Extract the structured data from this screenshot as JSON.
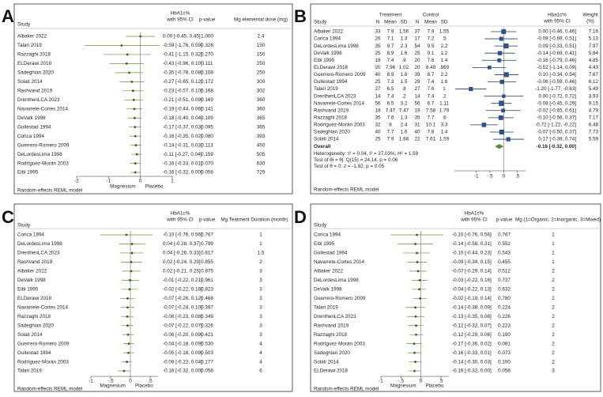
{
  "chart_data": [
    {
      "type": "forest",
      "panel": "A",
      "header": [
        "Study",
        "HbA1c%",
        "with 95% CI",
        "p-value",
        "Mg elemental dose (mg)"
      ],
      "categories": [
        "Albaker 2022",
        "Talari 2019",
        "Razzaghi 2018",
        "ELDerawi 2018",
        "Sadeghian 2020",
        "Solati 2014",
        "Rashvand 2019",
        "DrenthenLCA 2023",
        "Navarrete-Cortes 2014",
        "DeValk 1998",
        "Gullestad 1994",
        "Corica 1994",
        "Guerrero-Romero 2009",
        "DeLordesLima 1998",
        "Rodríguez-Morán 2003",
        "Eibl 1995"
      ],
      "values": [
        0.0,
        -0.59,
        -0.41,
        -0.43,
        -0.35,
        -0.27,
        -0.23,
        -0.21,
        -0.19,
        -0.18,
        -0.17,
        -0.16,
        -0.14,
        -0.11,
        -0.16,
        -0.16
      ],
      "lower": [
        -0.45,
        -1.76,
        -1.15,
        -0.96,
        -0.78,
        -0.65,
        -0.57,
        -0.51,
        -0.44,
        -0.4,
        -0.37,
        -0.35,
        -0.31,
        -0.27,
        -0.33,
        -0.32
      ],
      "upper": [
        0.45,
        0.59,
        0.32,
        0.1,
        0.08,
        0.12,
        0.1,
        0.09,
        0.06,
        0.04,
        0.03,
        0.02,
        0.03,
        0.04,
        0.01,
        0.0
      ],
      "value_labels": [
        "0.00 [-0.45, 0.45]",
        "-0.59 [-1.76, 0.59]",
        "-0.41 [-1.15, 0.32]",
        "-0.43 [-0.96, 0.10]",
        "-0.35 [-0.78, 0.08]",
        "-0.27 [-0.65, 0.12]",
        "-0.23 [-0.57, 0.10]",
        "-0.21 [-0.51, 0.09]",
        "-0.19 [-0.44, 0.06]",
        "-0.18 [-0.40, 0.04]",
        "-0.17 [-0.37, 0.03]",
        "-0.16 [-0.35, 0.02]",
        "-0.14 [-0.31, 0.03]",
        "-0.11 [-0.27, 0.04]",
        "-0.16 [-0.33, 0.01]",
        "-0.16 [-0.32, 0.00]"
      ],
      "p_values": [
        "1.000",
        "0.328",
        "0.270",
        "0.111",
        "0.108",
        "0.172",
        "0.168",
        "0.169",
        "0.141",
        "0.109",
        "0.095",
        "0.080",
        "0.113",
        "0.159",
        "0.070",
        "0.056"
      ],
      "moderator": [
        2.4,
        150,
        150,
        250,
        250,
        300,
        302,
        360,
        360,
        365,
        365,
        393,
        450,
        505,
        630,
        729
      ],
      "xlim": [
        -2,
        1
      ],
      "xticks": [
        -2,
        -1,
        0,
        1
      ],
      "left_label": "Magnesium",
      "right_label": "Placebo",
      "footer": "Random-effects REML model"
    },
    {
      "type": "forest",
      "panel": "B",
      "header": [
        "Study",
        "Treatment",
        "Control",
        "N",
        "Mean",
        "SD",
        "N",
        "Mean",
        "SD",
        "Hba1c%",
        "with 95% CI",
        "Weight",
        "(%)"
      ],
      "categories": [
        "Albaker 2022",
        "Corica 1994",
        "DeLordesLima 1998",
        "DeValk 1998",
        "Eibl 1995",
        "ELDerawi 2018",
        "Guerrero-Romero 2009",
        "Gullestad 1994",
        "Talari 2019",
        "DrenthenLCA 2023",
        "Navarrete-Cortes 2014",
        "Rashvand 2019",
        "Razzaghi 2018",
        "Rodríguez-Morán 2003",
        "Sadeghian 2020",
        "Solati 2014"
      ],
      "treatment": [
        [
          "33",
          "7.9",
          "1.56"
        ],
        [
          "26",
          "7.1",
          "1.3"
        ],
        [
          "35",
          "9.7",
          "2.3"
        ],
        [
          "25",
          "8.9",
          "1.6"
        ],
        [
          "18",
          "7.4",
          ".9"
        ],
        [
          "20",
          "7.96",
          "1.02"
        ],
        [
          "40",
          "8.9",
          "1.8"
        ],
        [
          "25",
          "7.3",
          "1.5"
        ],
        [
          "27",
          "6.5",
          ".8"
        ],
        [
          "14",
          "7.4",
          ".2"
        ],
        [
          "56",
          "6.5",
          "3.2"
        ],
        [
          "18",
          "7.47",
          "7.47"
        ],
        [
          "35",
          "7.6",
          "1.3"
        ],
        [
          "32",
          "8",
          "2.4"
        ],
        [
          "40",
          "7.7",
          "1.6"
        ],
        [
          "25",
          "7.9",
          "1.68"
        ]
      ],
      "control": [
        [
          "37",
          "7.9",
          "1.55"
        ],
        [
          "17",
          "7.2",
          ".5"
        ],
        [
          "54",
          "9.5",
          "2.2"
        ],
        [
          "25",
          "9.1",
          "1.2"
        ],
        [
          "20",
          "7.6",
          "1.4"
        ],
        [
          "20",
          "8.49",
          ".869"
        ],
        [
          "39",
          "8.7",
          "2.2"
        ],
        [
          "29",
          "7.4",
          "1.6"
        ],
        [
          "27",
          "7.6",
          "1"
        ],
        [
          "14",
          "7.4",
          ".2"
        ],
        [
          "56",
          "6.7",
          "1.11"
        ],
        [
          "19",
          "7.58",
          "1.79"
        ],
        [
          "35",
          "7.7",
          ".6"
        ],
        [
          "31",
          "10.1",
          "3.3"
        ],
        [
          "40",
          "7.8",
          "1.4"
        ],
        [
          "22",
          "7.61",
          "1.59"
        ]
      ],
      "values": [
        0.0,
        -0.09,
        0.09,
        -0.14,
        -0.16,
        -0.52,
        0.1,
        -0.06,
        -1.2,
        0.0,
        -0.08,
        -0.02,
        -0.1,
        -0.72,
        -0.07,
        0.17
      ],
      "lower": [
        -0.46,
        -0.69,
        -0.33,
        -0.69,
        -0.79,
        -1.14,
        -0.34,
        -0.59,
        -1.77,
        -0.72,
        -0.45,
        -0.65,
        -0.56,
        -1.22,
        -0.5,
        -0.39
      ],
      "upper": [
        0.46,
        0.51,
        0.51,
        0.41,
        0.46,
        0.09,
        0.54,
        0.46,
        -0.63,
        0.72,
        0.29,
        0.61,
        0.37,
        -0.22,
        0.37,
        0.74
      ],
      "value_labels": [
        "0.00 [-0.46, 0.46]",
        "-0.09 [-0.69, 0.51]",
        "0.09 [-0.33, 0.51]",
        "-0.14 [-0.69, 0.41]",
        "-0.16 [-0.79, 0.46]",
        "-0.52 [-1.14, 0.09]",
        "0.10 [-0.34, 0.54]",
        "-0.06 [-0.59, 0.46]",
        "-1.20 [-1.77, -0.63]",
        "0.00 [-0.72, 0.72]",
        "-0.08 [-0.45, 0.29]",
        "-0.02 [-0.65, 0.61]",
        "-0.10 [-0.56, 0.37]",
        "-0.72 [-1.22, -0.22]",
        "-0.07 [-0.50, 0.37]",
        "0.17 [-0.39, 0.74]"
      ],
      "weights": [
        7.16,
        5.13,
        7.97,
        5.84,
        4.85,
        4.43,
        7.67,
        6.12,
        5.49,
        3.93,
        9.15,
        4.79,
        7.17,
        6.48,
        7.73,
        5.59
      ],
      "overall": {
        "label": "Overall",
        "value": -0.16,
        "lower": -0.32,
        "upper": 0.0,
        "value_label": "-0.16 [-0.32, 0.00]"
      },
      "notes": [
        "Heterogeneity: τ² = 0.04, I² = 37.03%, H² = 1.59",
        "Test of θi = θj: Q(15) = 24.14, p = 0.06",
        "Test of θ = 0: z = -1.92, p = 0.05"
      ],
      "xlim": [
        -1.8,
        0.8
      ],
      "xticks": [
        -1,
        {
          "value": -0.5,
          "label": "-.5"
        },
        0,
        {
          "value": 0.5,
          "label": ".5"
        }
      ],
      "footer": "Random-effects REML model"
    },
    {
      "type": "forest",
      "panel": "C",
      "header": [
        "Study",
        "HbA1c%",
        "with 95% CI",
        "p-value",
        "Mg Teatment Duration (month)"
      ],
      "categories": [
        "Corica 1994",
        "DeLordesLima 1998",
        "DrenthenLCA 2023",
        "Rashvand 2019",
        "Albaker 2022",
        "DeValk 1998",
        "Eibl 1995",
        "ELDerawi 2018",
        "Navarrete-Cortes 2014",
        "Razzaghi 2018",
        "Sadeghian 2020",
        "Solati 2014",
        "Guerrero-Romero 2009",
        "Gullestad 1994",
        "Rodríguez-Morán 2003",
        "Talari 2019"
      ],
      "values": [
        -0.1,
        0.04,
        0.04,
        0.02,
        0.02,
        -0.01,
        -0.02,
        -0.07,
        -0.07,
        -0.08,
        -0.07,
        -0.06,
        -0.04,
        -0.05,
        -0.09,
        -0.16
      ],
      "lower": [
        -0.76,
        -0.28,
        -0.26,
        -0.24,
        -0.21,
        -0.22,
        -0.22,
        -0.26,
        -0.24,
        -0.23,
        -0.22,
        -0.2,
        -0.18,
        -0.18,
        -0.22,
        -0.32
      ],
      "upper": [
        0.56,
        0.37,
        0.33,
        0.29,
        0.25,
        0.21,
        0.18,
        0.12,
        0.1,
        0.08,
        0.07,
        0.09,
        0.09,
        0.09,
        0.04,
        0.0
      ],
      "value_labels": [
        "-0.10 [-0.76, 0.56]",
        "0.04 [-0.28, 0.37]",
        "0.04 [-0.26, 0.33]",
        "0.02 [-0.24, 0.29]",
        "0.02 [-0.21, 0.25]",
        "-0.01 [-0.22, 0.21]",
        "-0.02 [-0.22, 0.18]",
        "-0.07 [-0.26, 0.12]",
        "-0.07 [-0.24, 0.10]",
        "-0.08 [-0.23, 0.08]",
        "-0.07 [-0.22, 0.07]",
        "-0.06 [-0.20, 0.09]",
        "-0.04 [-0.18, 0.09]",
        "-0.05 [-0.18, 0.09]",
        "-0.09 [-0.22, 0.04]",
        "-0.16 [-0.32, 0.00]"
      ],
      "p_values": [
        "0.767",
        "0.799",
        "0.817",
        "0.855",
        "0.875",
        "0.961",
        "0.823",
        "0.468",
        "0.397",
        "0.349",
        "0.326",
        "0.421",
        "0.530",
        "0.503",
        "0.177",
        "0.056"
      ],
      "moderator": [
        1,
        1,
        1.5,
        2,
        3,
        3,
        3,
        3,
        3,
        3,
        3,
        3,
        4,
        4,
        4,
        6
      ],
      "xlim": [
        -1,
        0.7
      ],
      "xticks": [
        -1,
        {
          "value": -0.5,
          "label": "-.5"
        },
        0,
        {
          "value": 0.5,
          "label": ".5"
        }
      ],
      "left_label": "Magnesium",
      "right_label": "Placebo",
      "footer": "Random-effects REML model"
    },
    {
      "type": "forest",
      "panel": "D",
      "header": [
        "Study",
        "HbA1c%",
        "with 95% CI",
        "p-value",
        "Mg (1=Organic, 2=Inorganic, 3=Mixed)"
      ],
      "categories": [
        "Corica 1994",
        "Eibl 1995",
        "Gullestad 1994",
        "Navarrete-Cortes 2014",
        "Albaker 2022",
        "DeLordesLima 1998",
        "DeValk 1998",
        "Guerrero-Romero 2009",
        "Talari 2019",
        "DrenthenLCA 2023",
        "Rashvand 2019",
        "Razzaghi 2018",
        "Rodríguez-Morán 2003",
        "Sadeghian 2020",
        "Solati 2014",
        "ELDerawi 2018"
      ],
      "values": [
        -0.1,
        -0.14,
        -0.1,
        -0.09,
        -0.07,
        -0.03,
        -0.04,
        -0.02,
        -0.14,
        -0.13,
        -0.12,
        -0.12,
        -0.17,
        -0.16,
        -0.14,
        -0.16
      ],
      "lower": [
        -0.76,
        -0.58,
        -0.44,
        -0.34,
        -0.29,
        -0.22,
        -0.22,
        -0.19,
        -0.38,
        -0.35,
        -0.32,
        -0.29,
        -0.36,
        -0.33,
        -0.3,
        -0.32
      ],
      "upper": [
        0.56,
        0.31,
        0.23,
        0.15,
        0.14,
        0.16,
        0.13,
        0.14,
        0.09,
        0.08,
        0.07,
        0.06,
        0.02,
        0.01,
        0.03,
        0.0
      ],
      "value_labels": [
        "-0.10 [-0.76, 0.56]",
        "-0.14 [-0.58, 0.31]",
        "-0.10 [-0.44, 0.23]",
        "-0.09 [-0.34, 0.15]",
        "-0.07 [-0.29, 0.14]",
        "-0.03 [-0.22, 0.16]",
        "-0.04 [-0.22, 0.13]",
        "-0.02 [-0.19, 0.14]",
        "-0.14 [-0.38, 0.09]",
        "-0.13 [-0.35, 0.08]",
        "-0.12 [-0.32, 0.07]",
        "-0.12 [-0.29, 0.06]",
        "-0.17 [-0.36, 0.02]",
        "-0.16 [-0.33, 0.01]",
        "-0.14 [-0.30, 0.03]",
        "-0.16 [-0.32, 0.00]"
      ],
      "p_values": [
        "0.767",
        "0.552",
        "0.543",
        "0.455",
        "0.512",
        "0.737",
        "0.632",
        "0.780",
        "0.224",
        "0.226",
        "0.223",
        "0.190",
        "0.081",
        "0.073",
        "0.100",
        "0.056"
      ],
      "moderator": [
        1,
        1,
        1,
        1,
        2,
        2,
        2,
        2,
        2,
        2,
        2,
        2,
        2,
        2,
        2,
        3
      ],
      "xlim": [
        -1,
        0.7
      ],
      "xticks": [
        -1,
        {
          "value": -0.5,
          "label": "-.5"
        },
        0,
        {
          "value": 0.5,
          "label": ".5"
        }
      ],
      "left_label": "Magnesium",
      "right_label": "Placebo",
      "footer": "Random-effects REML model"
    }
  ]
}
